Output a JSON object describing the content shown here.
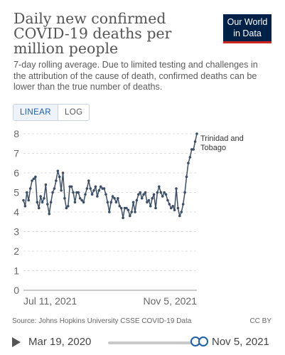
{
  "header": {
    "title": "Daily new confirmed COVID-19 deaths per million people",
    "subtitle": "7-day rolling average. Due to limited testing and challenges in the attribution of the cause of death, confirmed deaths can be lower than the true number of deaths.",
    "logo_line1": "Our World",
    "logo_line2": "in Data"
  },
  "controls": {
    "linear_label": "LINEAR",
    "log_label": "LOG",
    "active": "LINEAR"
  },
  "chart_data": {
    "type": "line",
    "title": "Daily new confirmed COVID-19 deaths per million people",
    "ylim": [
      0,
      8
    ],
    "yticks": [
      "0",
      "1",
      "2",
      "3",
      "4",
      "5",
      "6",
      "7",
      "8"
    ],
    "xticks": [
      "Jul 11, 2021",
      "Nov 5, 2021"
    ],
    "grid": "horizontal dashed",
    "series": [
      {
        "name": "Trinidad and Tobago",
        "color": "#3c4e66",
        "x_start": "Jul 11, 2021",
        "x_end": "Nov 5, 2021",
        "values": [
          4.6,
          4.3,
          5.0,
          4.6,
          5.2,
          5.6,
          5.7,
          5.8,
          4.5,
          4.2,
          4.8,
          4.5,
          4.7,
          5.4,
          4.4,
          3.9,
          4.5,
          5.0,
          5.2,
          5.6,
          6.1,
          5.8,
          5.1,
          6.0,
          4.7,
          4.2,
          4.3,
          5.3,
          5.3,
          5.0,
          4.5,
          5.0,
          5.0,
          4.7,
          4.6,
          4.5,
          4.9,
          5.2,
          5.6,
          5.2,
          4.9,
          5.1,
          5.3,
          4.8,
          5.1,
          5.3,
          5.2,
          5.2,
          4.9,
          4.5,
          4.0,
          4.5,
          4.8,
          4.7,
          4.5,
          4.7,
          4.3,
          4.2,
          3.7,
          4.2,
          4.2,
          4.1,
          3.8,
          4.0,
          4.5,
          4.0,
          4.6,
          4.9,
          5.0,
          4.7,
          4.9,
          5.0,
          4.5,
          4.6,
          4.3,
          4.7,
          4.9,
          4.2,
          5.0,
          5.3,
          5.0,
          4.8,
          5.0,
          4.9,
          4.6,
          4.4,
          4.2,
          4.3,
          4.1,
          5.2,
          4.2,
          3.8,
          4.0,
          4.4,
          5.0,
          5.8,
          6.5,
          6.8,
          7.2,
          7.2,
          7.6,
          8.0
        ]
      }
    ]
  },
  "footer": {
    "source": "Source: Johns Hopkins University CSSE COVID-19 Data",
    "license": "CC BY"
  },
  "timeline": {
    "start_label": "Mar 19, 2020",
    "end_label": "Nov 5, 2021",
    "range_start_fraction": 0.92,
    "range_end_fraction": 1.0
  }
}
